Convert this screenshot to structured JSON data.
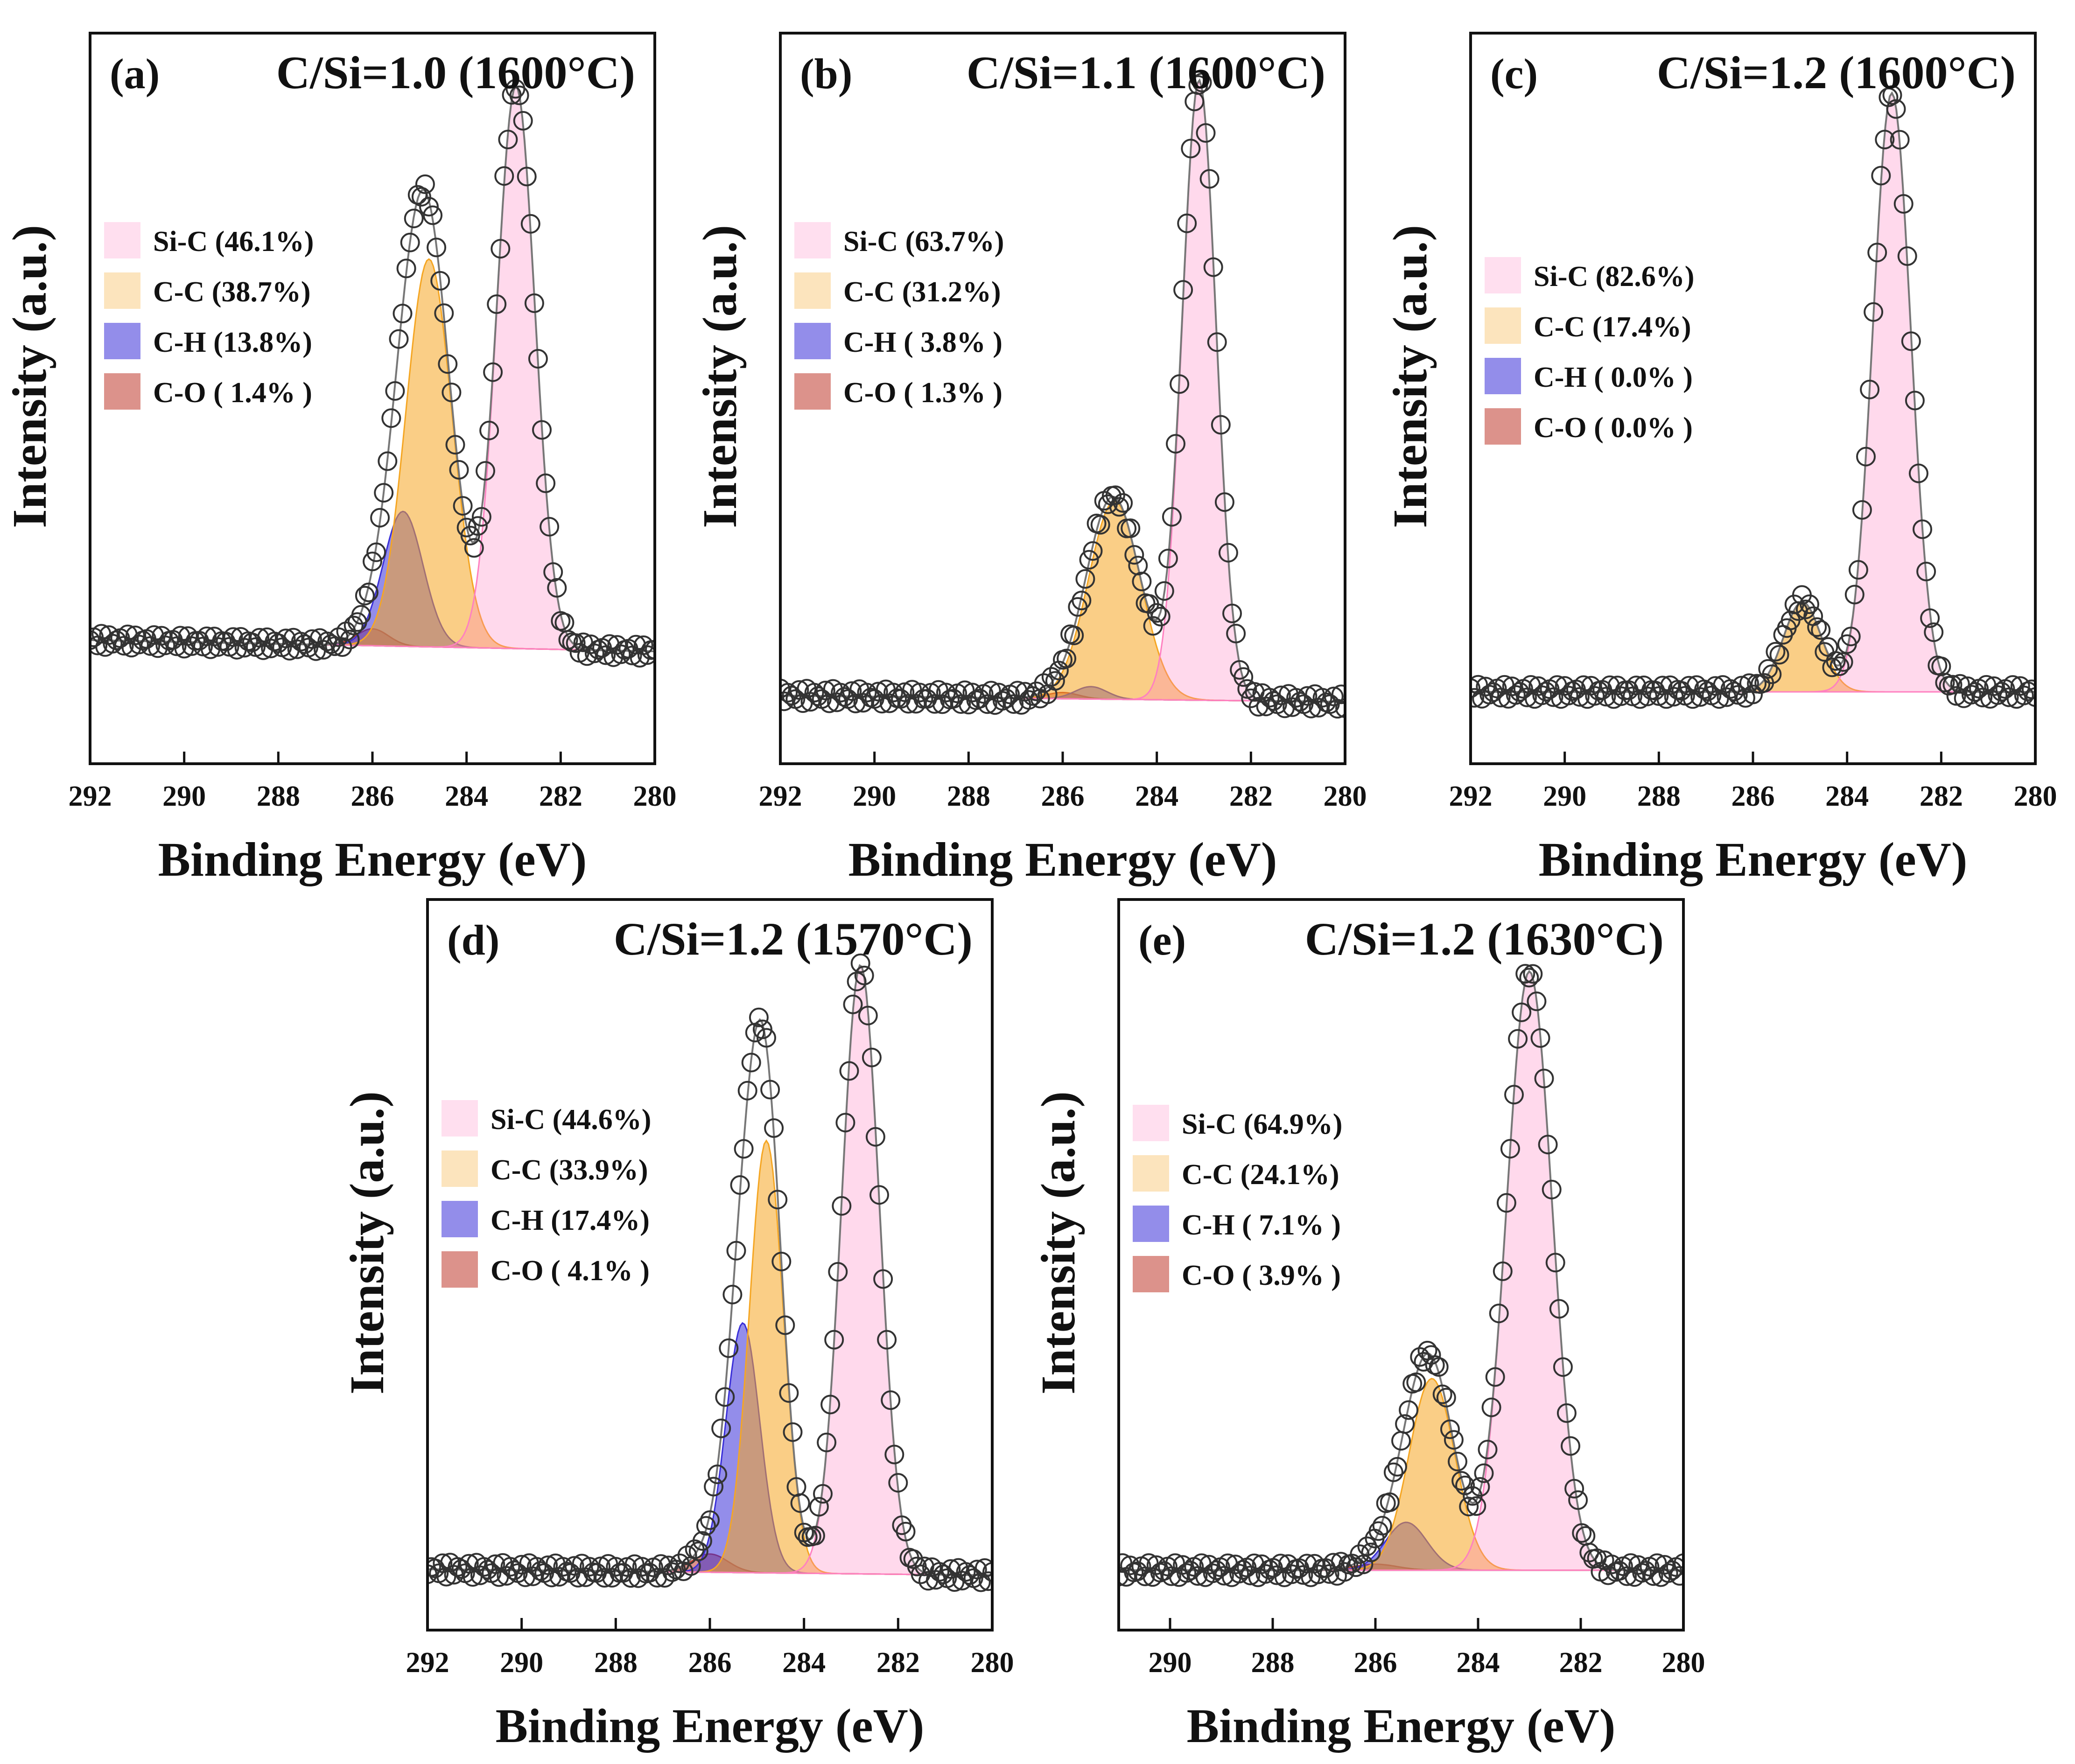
{
  "figure": {
    "x_unit": "eV"
  },
  "legend_labels": [
    "Si-C",
    "C-C",
    "C-H",
    "C-O"
  ],
  "colors": {
    "sic": "#ff80c0",
    "cc": "#f5a623",
    "ch": "#3a2fd8",
    "co": "#c0392b",
    "marker": "#333333"
  },
  "chart_data": [
    {
      "type": "area",
      "panel": "(a)",
      "title": "C/Si=1.0 (1600°C)",
      "xlabel": "Binding Energy (eV)",
      "ylabel": "Intensity (a.u.)",
      "xlim": [
        292,
        280
      ],
      "xticks": [
        292,
        290,
        288,
        286,
        284,
        282,
        280
      ],
      "ylim": [
        -0.2,
        1.1
      ],
      "baseline": {
        "left": 0.02,
        "right": 0.0
      },
      "legend": [
        "Si-C (46.1%)",
        "C-C (38.7%)",
        "C-H (13.8%)",
        "C-O ( 1.4% )"
      ],
      "series": [
        {
          "name": "Si-C",
          "center": 282.95,
          "height": 1.0,
          "fwhm": 0.95
        },
        {
          "name": "C-C",
          "center": 284.8,
          "height": 0.69,
          "fwhm": 1.15
        },
        {
          "name": "C-H",
          "center": 285.35,
          "height": 0.24,
          "fwhm": 1.0
        },
        {
          "name": "C-O",
          "center": 286.0,
          "height": 0.03,
          "fwhm": 0.8
        }
      ]
    },
    {
      "type": "area",
      "panel": "(b)",
      "title": "C/Si=1.1 (1600°C)",
      "xlabel": "Binding Energy (eV)",
      "ylabel": "Intensity (a.u.)",
      "xlim": [
        292,
        280
      ],
      "xticks": [
        292,
        290,
        288,
        286,
        284,
        282,
        280
      ],
      "ylim": [
        -0.1,
        1.08
      ],
      "baseline": {
        "left": 0.01,
        "right": 0.0
      },
      "legend": [
        "Si-C (63.7%)",
        "C-C (31.2%)",
        "C-H ( 3.8% )",
        "C-O ( 1.3% )"
      ],
      "series": [
        {
          "name": "Si-C",
          "center": 283.1,
          "height": 1.0,
          "fwhm": 0.85
        },
        {
          "name": "C-C",
          "center": 284.9,
          "height": 0.32,
          "fwhm": 1.3
        },
        {
          "name": "C-H",
          "center": 285.4,
          "height": 0.02,
          "fwhm": 0.8
        },
        {
          "name": "C-O",
          "center": 286.0,
          "height": 0.01,
          "fwhm": 0.8
        }
      ]
    },
    {
      "type": "area",
      "panel": "(c)",
      "title": "C/Si=1.2 (1600°C)",
      "xlabel": "Binding Energy (eV)",
      "ylabel": "Intensity (a.u.)",
      "xlim": [
        292,
        280
      ],
      "xticks": [
        292,
        290,
        288,
        286,
        284,
        282,
        280
      ],
      "ylim": [
        -0.12,
        1.1
      ],
      "baseline": {
        "left": 0.0,
        "right": 0.0
      },
      "legend": [
        "Si-C (82.6%)",
        "C-C (17.4%)",
        "C-H ( 0.0% )",
        "C-O ( 0.0% )"
      ],
      "series": [
        {
          "name": "Si-C",
          "center": 283.05,
          "height": 1.0,
          "fwhm": 0.95
        },
        {
          "name": "C-C",
          "center": 284.95,
          "height": 0.15,
          "fwhm": 0.95
        },
        {
          "name": "C-H",
          "center": 285.4,
          "height": 0.0,
          "fwhm": 0.8
        },
        {
          "name": "C-O",
          "center": 286.0,
          "height": 0.0,
          "fwhm": 0.8
        }
      ]
    },
    {
      "type": "area",
      "panel": "(d)",
      "title": "C/Si=1.2 (1570°C)",
      "xlabel": "Binding Energy (eV)",
      "ylabel": "Intensity (a.u.)",
      "xlim": [
        292,
        280
      ],
      "xticks": [
        292,
        290,
        288,
        286,
        284,
        282,
        280
      ],
      "ylim": [
        -0.1,
        1.1
      ],
      "baseline": {
        "left": 0.0,
        "right": -0.01
      },
      "legend": [
        "Si-C (44.6%)",
        "C-C (33.9%)",
        "C-H (17.4%)",
        "C-O ( 4.1% )"
      ],
      "series": [
        {
          "name": "Si-C",
          "center": 282.8,
          "height": 1.0,
          "fwhm": 0.95
        },
        {
          "name": "C-C",
          "center": 284.8,
          "height": 0.71,
          "fwhm": 0.85
        },
        {
          "name": "C-H",
          "center": 285.3,
          "height": 0.41,
          "fwhm": 0.85
        },
        {
          "name": "C-O",
          "center": 286.0,
          "height": 0.03,
          "fwhm": 0.9
        }
      ]
    },
    {
      "type": "area",
      "panel": "(e)",
      "title": "C/Si=1.2 (1630°C)",
      "xlabel": "Binding Energy (eV)",
      "ylabel": "Intensity (a.u.)",
      "xlim": [
        291,
        280
      ],
      "xticks": [
        290,
        288,
        286,
        284,
        282,
        280
      ],
      "ylim": [
        -0.1,
        1.12
      ],
      "baseline": {
        "left": 0.0,
        "right": 0.0
      },
      "legend": [
        "Si-C (64.9%)",
        "C-C (24.1%)",
        "C-H ( 7.1% )",
        "C-O ( 3.9% )"
      ],
      "series": [
        {
          "name": "Si-C",
          "center": 283.0,
          "height": 1.0,
          "fwhm": 1.05
        },
        {
          "name": "C-C",
          "center": 284.9,
          "height": 0.32,
          "fwhm": 1.05
        },
        {
          "name": "C-H",
          "center": 285.4,
          "height": 0.08,
          "fwhm": 0.95
        },
        {
          "name": "C-O",
          "center": 286.0,
          "height": 0.01,
          "fwhm": 1.0
        }
      ]
    }
  ]
}
